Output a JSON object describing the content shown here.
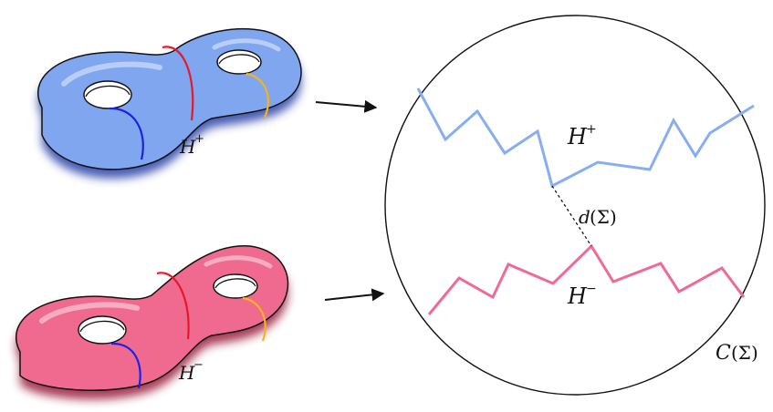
{
  "labels": {
    "handlebody_top": {
      "base": "H",
      "sup": "+"
    },
    "handlebody_bottom": {
      "base": "H",
      "sup": "−"
    },
    "curve_complex": {
      "script": "C",
      "arg": "(Σ)"
    },
    "distance": {
      "fn": "d",
      "arg": "(Σ)"
    },
    "disk_set_top": {
      "script": "H",
      "sup": "+"
    },
    "disk_set_bottom": {
      "script": "H",
      "sup": "−"
    }
  },
  "colors": {
    "top_surface": "#7fa6ee",
    "bottom_surface": "#f06a8f",
    "top_path": "#86aef0",
    "bottom_path": "#ee6b97",
    "meridian_left": "#1a22e6",
    "separating_curve": "#e8182a",
    "meridian_right": "#f4b41a",
    "outline": "#111111"
  }
}
